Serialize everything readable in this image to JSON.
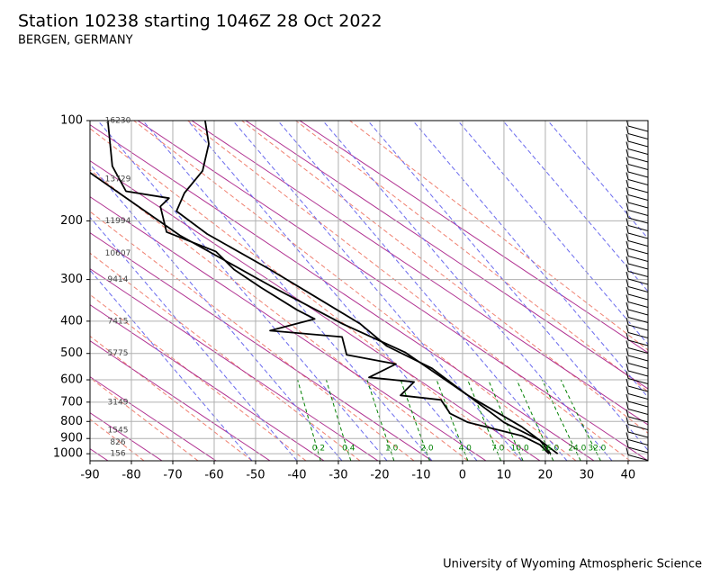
{
  "chart_data": {
    "type": "skewt",
    "title": "Station 10238 starting 1046Z 28 Oct 2022",
    "subtitle": "BERGEN, GERMANY",
    "caption": "University of Wyoming Atmospheric Science",
    "xlim": [
      -90,
      44.8
    ],
    "xticks": [
      -90,
      -80,
      -70,
      -60,
      -50,
      -40,
      -30,
      -20,
      -10,
      0,
      10,
      20,
      30,
      40
    ],
    "ylim": [
      1050,
      100
    ],
    "ylog": true,
    "yticks": [
      100,
      200,
      300,
      400,
      500,
      600,
      700,
      800,
      900,
      1000
    ],
    "grid": true,
    "series": [
      {
        "color": "#000000",
        "pressure": [
          100,
          117.5,
          141.5,
          165,
          187,
          219,
          280,
          337,
          407,
          475,
          554,
          668,
          805,
          912,
          1000
        ],
        "temperature": [
          -62.2,
          -61.3,
          -62.8,
          -67.2,
          -69.1,
          -61.7,
          -46.5,
          -35.7,
          -24.8,
          -18.3,
          -7.4,
          1.3,
          10.0,
          18.7,
          21.3
        ]
      },
      {
        "color": "#000000",
        "pressure": [
          100,
          137,
          163,
          171,
          181,
          216,
          247,
          280,
          317,
          370,
          394,
          427,
          446,
          505,
          538,
          590,
          609,
          668,
          689,
          757,
          805,
          883,
          940,
          1000
        ],
        "temperature": [
          -85.7,
          -84.6,
          -81.3,
          -70.9,
          -73.0,
          -71.5,
          -59.6,
          -55.2,
          -48.7,
          -40.0,
          -35.7,
          -46.5,
          -29.1,
          -28.0,
          -16.1,
          -22.6,
          -11.7,
          -15.0,
          -5.2,
          -3.0,
          1.3,
          14.3,
          18.7,
          20.9
        ]
      },
      {
        "color": "#000000",
        "pressure": [
          143.4,
          221,
          313,
          407,
          496,
          668,
          830,
          1000
        ],
        "temperature": [
          -90,
          -68.3,
          -46.5,
          -29.1,
          -13.9,
          1.3,
          14.3,
          23.0
        ]
      }
    ],
    "heights": [
      {
        "pressure": 100,
        "height": 16230
      },
      {
        "pressure": 150,
        "height": 13729
      },
      {
        "pressure": 200,
        "height": 11994
      },
      {
        "pressure": 250,
        "height": 10607
      },
      {
        "pressure": 300,
        "height": 9414
      },
      {
        "pressure": 400,
        "height": 7415
      },
      {
        "pressure": 500,
        "height": 5775
      },
      {
        "pressure": 700,
        "height": 3149
      },
      {
        "pressure": 850,
        "height": 1545
      },
      {
        "pressure": 925,
        "height": 826
      },
      {
        "pressure": 1000,
        "height": 156
      }
    ],
    "mixing_ratios": [
      {
        "value": 0.2,
        "label": "0.2"
      },
      {
        "value": 0.4,
        "label": "0.4"
      },
      {
        "value": 1,
        "label": "1.0"
      },
      {
        "value": 2,
        "label": "2.0"
      },
      {
        "value": 4,
        "label": "4.0"
      },
      {
        "value": 7,
        "label": "7.0"
      },
      {
        "value": 10,
        "label": "10.0"
      },
      {
        "value": 16,
        "label": "16.0"
      },
      {
        "value": 24,
        "label": "24.0"
      },
      {
        "value": 32,
        "label": "32.0"
      }
    ]
  }
}
